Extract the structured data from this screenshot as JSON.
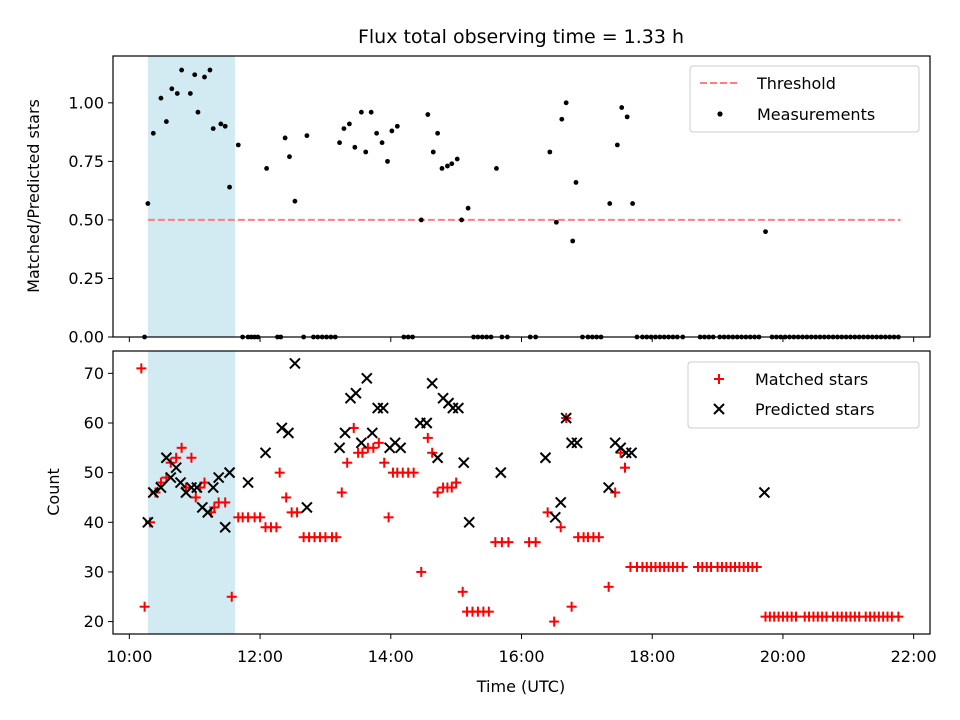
{
  "figure_title": "Flux total observing time = 1.33 h",
  "xlabel": "Time (UTC)",
  "xticks": [
    "10:00",
    "12:00",
    "14:00",
    "16:00",
    "18:00",
    "20:00",
    "22:00"
  ],
  "colors": {
    "threshold": "#ff7f7f",
    "measure": "#000000",
    "matched": "#ff0000",
    "predicted": "#000000",
    "highlight": "#add8e6"
  },
  "chart_data": [
    {
      "type": "scatter",
      "ylabel": "Matched/Predicted stars",
      "ylim": [
        0,
        1.2
      ],
      "yticks": [
        "0.00",
        "0.25",
        "0.50",
        "0.75",
        "1.00"
      ],
      "highlight_span": [
        "10:17",
        "11:37"
      ],
      "legend": {
        "position": "top-right",
        "threshold_label": "Threshold",
        "measurements_label": "Measurements"
      },
      "threshold": {
        "value": 0.5,
        "x_range": [
          "10:17",
          "21:48"
        ]
      },
      "measurements": [
        [
          "10:14",
          0
        ],
        [
          "10:17",
          0.57
        ],
        [
          "10:22",
          0.87
        ],
        [
          "10:29",
          1.02
        ],
        [
          "10:34",
          0.92
        ],
        [
          "10:39",
          1.06
        ],
        [
          "10:44",
          1.04
        ],
        [
          "10:48",
          1.14
        ],
        [
          "10:56",
          1.04
        ],
        [
          "11:00",
          1.12
        ],
        [
          "11:03",
          0.96
        ],
        [
          "11:09",
          1.11
        ],
        [
          "11:14",
          1.14
        ],
        [
          "11:17",
          0.89
        ],
        [
          "11:24",
          0.91
        ],
        [
          "11:28",
          0.9
        ],
        [
          "11:32",
          0.64
        ],
        [
          "11:40",
          0.82
        ],
        [
          "11:44",
          0
        ],
        [
          "11:49",
          0
        ],
        [
          "11:52",
          0
        ],
        [
          "11:55",
          0
        ],
        [
          "11:58",
          0
        ],
        [
          "12:06",
          0.72
        ],
        [
          "12:16",
          0
        ],
        [
          "12:19",
          0
        ],
        [
          "12:23",
          0.85
        ],
        [
          "12:27",
          0.77
        ],
        [
          "12:32",
          0.58
        ],
        [
          "12:40",
          0
        ],
        [
          "12:43",
          0.86
        ],
        [
          "12:49",
          0
        ],
        [
          "12:53",
          0
        ],
        [
          "12:57",
          0
        ],
        [
          "13:01",
          0
        ],
        [
          "13:05",
          0
        ],
        [
          "13:09",
          0
        ],
        [
          "13:13",
          0.83
        ],
        [
          "13:17",
          0.89
        ],
        [
          "13:22",
          0.91
        ],
        [
          "13:27",
          0.81
        ],
        [
          "13:33",
          0.96
        ],
        [
          "13:37",
          0.79
        ],
        [
          "13:42",
          0.96
        ],
        [
          "13:47",
          0.87
        ],
        [
          "13:52",
          0.83
        ],
        [
          "13:57",
          0.75
        ],
        [
          "14:01",
          0.88
        ],
        [
          "14:06",
          0.9
        ],
        [
          "14:12",
          0
        ],
        [
          "14:16",
          0
        ],
        [
          "14:20",
          0
        ],
        [
          "14:28",
          0.5
        ],
        [
          "14:34",
          0.95
        ],
        [
          "14:39",
          0.79
        ],
        [
          "14:43",
          0.87
        ],
        [
          "14:47",
          0.72
        ],
        [
          "14:52",
          0.73
        ],
        [
          "14:56",
          0.74
        ],
        [
          "15:01",
          0.76
        ],
        [
          "15:05",
          0.5
        ],
        [
          "15:11",
          0.55
        ],
        [
          "15:16",
          0
        ],
        [
          "15:20",
          0
        ],
        [
          "15:24",
          0
        ],
        [
          "15:28",
          0
        ],
        [
          "15:32",
          0
        ],
        [
          "15:37",
          0.72
        ],
        [
          "15:42",
          0
        ],
        [
          "15:47",
          0
        ],
        [
          "16:08",
          0
        ],
        [
          "16:13",
          0
        ],
        [
          "16:26",
          0.79
        ],
        [
          "16:32",
          0.49
        ],
        [
          "16:37",
          0.93
        ],
        [
          "16:41",
          1.0
        ],
        [
          "16:47",
          0.41
        ],
        [
          "16:50",
          0.66
        ],
        [
          "16:56",
          0
        ],
        [
          "17:01",
          0
        ],
        [
          "17:05",
          0
        ],
        [
          "17:09",
          0
        ],
        [
          "17:13",
          0
        ],
        [
          "17:21",
          0.57
        ],
        [
          "17:28",
          0.82
        ],
        [
          "17:32",
          0.98
        ],
        [
          "17:37",
          0.94
        ],
        [
          "17:42",
          0.57
        ],
        [
          "17:46",
          0
        ],
        [
          "17:51",
          0
        ],
        [
          "17:55",
          0
        ],
        [
          "17:59",
          0
        ],
        [
          "18:03",
          0
        ],
        [
          "18:07",
          0
        ],
        [
          "18:11",
          0
        ],
        [
          "18:15",
          0
        ],
        [
          "18:19",
          0
        ],
        [
          "18:23",
          0
        ],
        [
          "18:28",
          0
        ],
        [
          "18:44",
          0
        ],
        [
          "18:48",
          0
        ],
        [
          "18:52",
          0
        ],
        [
          "18:56",
          0
        ],
        [
          "19:02",
          0
        ],
        [
          "19:06",
          0
        ],
        [
          "19:10",
          0
        ],
        [
          "19:14",
          0
        ],
        [
          "19:18",
          0
        ],
        [
          "19:22",
          0
        ],
        [
          "19:26",
          0
        ],
        [
          "19:30",
          0
        ],
        [
          "19:34",
          0
        ],
        [
          "19:38",
          0
        ],
        [
          "19:44",
          0.45
        ],
        [
          "19:50",
          0
        ],
        [
          "19:54",
          0
        ],
        [
          "19:58",
          0
        ],
        [
          "20:02",
          0
        ],
        [
          "20:06",
          0
        ],
        [
          "20:10",
          0
        ],
        [
          "20:14",
          0
        ],
        [
          "20:18",
          0
        ],
        [
          "20:22",
          0
        ],
        [
          "20:26",
          0
        ],
        [
          "20:30",
          0
        ],
        [
          "20:34",
          0
        ],
        [
          "20:38",
          0
        ],
        [
          "20:42",
          0
        ],
        [
          "20:46",
          0
        ],
        [
          "20:50",
          0
        ],
        [
          "20:54",
          0
        ],
        [
          "20:58",
          0
        ],
        [
          "21:02",
          0
        ],
        [
          "21:06",
          0
        ],
        [
          "21:10",
          0
        ],
        [
          "21:14",
          0
        ],
        [
          "21:18",
          0
        ],
        [
          "21:22",
          0
        ],
        [
          "21:26",
          0
        ],
        [
          "21:30",
          0
        ],
        [
          "21:34",
          0
        ],
        [
          "21:38",
          0
        ],
        [
          "21:42",
          0
        ],
        [
          "21:46",
          0
        ]
      ]
    },
    {
      "type": "scatter",
      "ylabel": "Count",
      "ylim": [
        17.5,
        74.5
      ],
      "yticks": [
        "20",
        "30",
        "40",
        "50",
        "60",
        "70"
      ],
      "highlight_span": [
        "10:17",
        "11:37"
      ],
      "legend": {
        "position": "top-right",
        "matched_label": "Matched stars",
        "predicted_label": "Predicted stars"
      },
      "matched": [
        [
          "10:11",
          71
        ],
        [
          "10:14",
          23
        ],
        [
          "10:19",
          40
        ],
        [
          "10:24",
          46
        ],
        [
          "10:29",
          48
        ],
        [
          "10:34",
          49
        ],
        [
          "10:38",
          52
        ],
        [
          "10:43",
          53
        ],
        [
          "10:48",
          55
        ],
        [
          "10:52",
          47
        ],
        [
          "10:57",
          53
        ],
        [
          "11:01",
          45
        ],
        [
          "11:05",
          47
        ],
        [
          "11:09",
          48
        ],
        [
          "11:15",
          42
        ],
        [
          "11:18",
          43
        ],
        [
          "11:22",
          44
        ],
        [
          "11:28",
          44
        ],
        [
          "11:34",
          25
        ],
        [
          "11:40",
          41
        ],
        [
          "11:44",
          41
        ],
        [
          "11:49",
          41
        ],
        [
          "11:55",
          41
        ],
        [
          "12:00",
          41
        ],
        [
          "12:05",
          39
        ],
        [
          "12:10",
          39
        ],
        [
          "12:15",
          39
        ],
        [
          "12:18",
          50
        ],
        [
          "12:24",
          45
        ],
        [
          "12:29",
          42
        ],
        [
          "12:34",
          42
        ],
        [
          "12:40",
          37
        ],
        [
          "12:45",
          37
        ],
        [
          "12:50",
          37
        ],
        [
          "12:55",
          37
        ],
        [
          "13:00",
          37
        ],
        [
          "13:06",
          37
        ],
        [
          "13:10",
          37
        ],
        [
          "13:15",
          46
        ],
        [
          "13:20",
          52
        ],
        [
          "13:26",
          59
        ],
        [
          "13:30",
          54
        ],
        [
          "13:34",
          54
        ],
        [
          "13:39",
          55
        ],
        [
          "13:44",
          55
        ],
        [
          "13:49",
          56
        ],
        [
          "13:54",
          52
        ],
        [
          "13:58",
          41
        ],
        [
          "14:02",
          50
        ],
        [
          "14:06",
          50
        ],
        [
          "14:11",
          50
        ],
        [
          "14:16",
          50
        ],
        [
          "14:21",
          50
        ],
        [
          "14:28",
          30
        ],
        [
          "14:34",
          57
        ],
        [
          "14:38",
          54
        ],
        [
          "14:43",
          46
        ],
        [
          "14:48",
          47
        ],
        [
          "14:52",
          47
        ],
        [
          "14:56",
          47
        ],
        [
          "15:00",
          48
        ],
        [
          "15:06",
          26
        ],
        [
          "15:10",
          22
        ],
        [
          "15:15",
          22
        ],
        [
          "15:20",
          22
        ],
        [
          "15:25",
          22
        ],
        [
          "15:30",
          22
        ],
        [
          "15:36",
          36
        ],
        [
          "15:42",
          36
        ],
        [
          "15:48",
          36
        ],
        [
          "16:07",
          36
        ],
        [
          "16:13",
          36
        ],
        [
          "16:24",
          42
        ],
        [
          "16:30",
          20
        ],
        [
          "16:36",
          39
        ],
        [
          "16:41",
          61
        ],
        [
          "16:46",
          23
        ],
        [
          "16:52",
          37
        ],
        [
          "16:57",
          37
        ],
        [
          "17:01",
          37
        ],
        [
          "17:06",
          37
        ],
        [
          "17:11",
          37
        ],
        [
          "17:20",
          27
        ],
        [
          "17:26",
          46
        ],
        [
          "17:31",
          54
        ],
        [
          "17:35",
          51
        ],
        [
          "17:40",
          31
        ],
        [
          "17:46",
          31
        ],
        [
          "17:51",
          31
        ],
        [
          "17:55",
          31
        ],
        [
          "17:59",
          31
        ],
        [
          "18:03",
          31
        ],
        [
          "18:07",
          31
        ],
        [
          "18:11",
          31
        ],
        [
          "18:15",
          31
        ],
        [
          "18:19",
          31
        ],
        [
          "18:23",
          31
        ],
        [
          "18:28",
          31
        ],
        [
          "18:42",
          31
        ],
        [
          "18:46",
          31
        ],
        [
          "18:50",
          31
        ],
        [
          "18:54",
          31
        ],
        [
          "19:00",
          31
        ],
        [
          "19:04",
          31
        ],
        [
          "19:08",
          31
        ],
        [
          "19:12",
          31
        ],
        [
          "19:16",
          31
        ],
        [
          "19:20",
          31
        ],
        [
          "19:24",
          31
        ],
        [
          "19:28",
          31
        ],
        [
          "19:32",
          31
        ],
        [
          "19:36",
          31
        ],
        [
          "19:44",
          21
        ],
        [
          "19:48",
          21
        ],
        [
          "19:52",
          21
        ],
        [
          "19:56",
          21
        ],
        [
          "20:00",
          21
        ],
        [
          "20:04",
          21
        ],
        [
          "20:08",
          21
        ],
        [
          "20:12",
          21
        ],
        [
          "20:20",
          21
        ],
        [
          "20:24",
          21
        ],
        [
          "20:28",
          21
        ],
        [
          "20:32",
          21
        ],
        [
          "20:36",
          21
        ],
        [
          "20:40",
          21
        ],
        [
          "20:46",
          21
        ],
        [
          "20:50",
          21
        ],
        [
          "20:54",
          21
        ],
        [
          "20:58",
          21
        ],
        [
          "21:02",
          21
        ],
        [
          "21:06",
          21
        ],
        [
          "21:10",
          21
        ],
        [
          "21:16",
          21
        ],
        [
          "21:20",
          21
        ],
        [
          "21:24",
          21
        ],
        [
          "21:28",
          21
        ],
        [
          "21:32",
          21
        ],
        [
          "21:36",
          21
        ],
        [
          "21:40",
          21
        ],
        [
          "21:46",
          21
        ]
      ],
      "predicted": [
        [
          "10:17",
          40
        ],
        [
          "10:22",
          46
        ],
        [
          "10:29",
          47
        ],
        [
          "10:34",
          53
        ],
        [
          "10:38",
          49
        ],
        [
          "10:43",
          51
        ],
        [
          "10:47",
          48
        ],
        [
          "10:52",
          46
        ],
        [
          "10:57",
          47
        ],
        [
          "11:02",
          47
        ],
        [
          "11:07",
          43
        ],
        [
          "11:12",
          42
        ],
        [
          "11:17",
          47
        ],
        [
          "11:22",
          49
        ],
        [
          "11:28",
          39
        ],
        [
          "11:32",
          50
        ],
        [
          "11:49",
          48
        ],
        [
          "12:05",
          54
        ],
        [
          "12:20",
          59
        ],
        [
          "12:26",
          58
        ],
        [
          "12:32",
          72
        ],
        [
          "12:43",
          43
        ],
        [
          "13:13",
          55
        ],
        [
          "13:18",
          58
        ],
        [
          "13:23",
          65
        ],
        [
          "13:28",
          66
        ],
        [
          "13:33",
          56
        ],
        [
          "13:38",
          69
        ],
        [
          "13:43",
          58
        ],
        [
          "13:48",
          63
        ],
        [
          "13:53",
          63
        ],
        [
          "13:59",
          55
        ],
        [
          "14:04",
          56
        ],
        [
          "14:09",
          55
        ],
        [
          "14:27",
          60
        ],
        [
          "14:33",
          60
        ],
        [
          "14:38",
          68
        ],
        [
          "14:43",
          53
        ],
        [
          "14:48",
          65
        ],
        [
          "14:53",
          64
        ],
        [
          "14:57",
          63
        ],
        [
          "15:02",
          63
        ],
        [
          "15:07",
          52
        ],
        [
          "15:12",
          40
        ],
        [
          "15:41",
          50
        ],
        [
          "16:22",
          53
        ],
        [
          "16:31",
          41
        ],
        [
          "16:36",
          44
        ],
        [
          "16:41",
          61
        ],
        [
          "16:46",
          56
        ],
        [
          "16:51",
          56
        ],
        [
          "17:20",
          47
        ],
        [
          "17:26",
          56
        ],
        [
          "17:31",
          55
        ],
        [
          "17:36",
          54
        ],
        [
          "17:41",
          54
        ],
        [
          "19:43",
          46
        ]
      ]
    }
  ]
}
